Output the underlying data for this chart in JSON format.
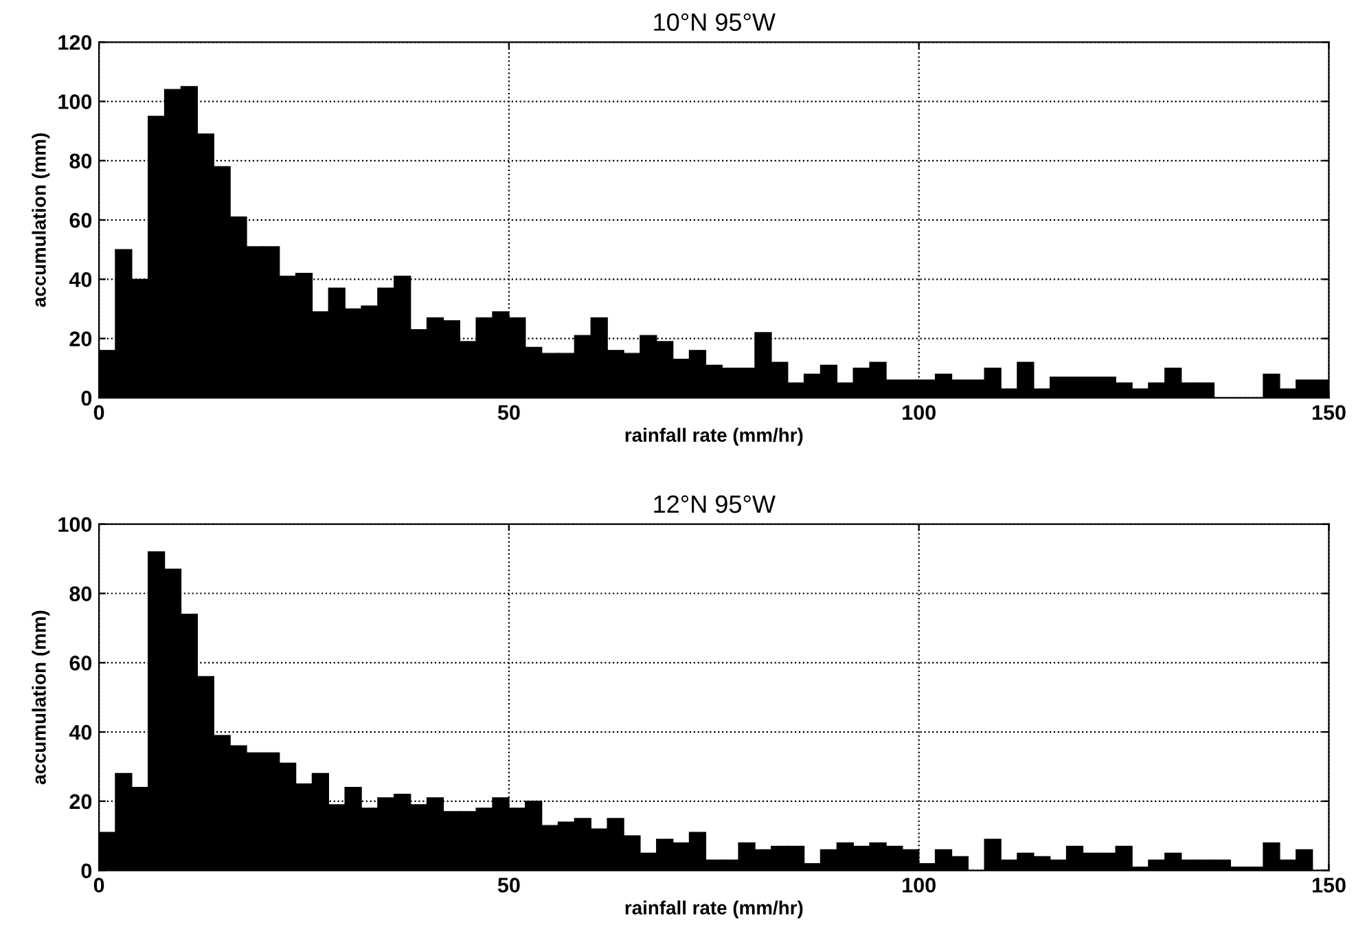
{
  "chart_data": [
    {
      "type": "histogram",
      "title": "10°N 95°W",
      "xlabel": "rainfall rate (mm/hr)",
      "ylabel": "accumulation (mm)",
      "color": "#000000",
      "grid": true,
      "bins": [
        0,
        2,
        4,
        6,
        8,
        10,
        12,
        14,
        16,
        18,
        20,
        22,
        24,
        26,
        28,
        30,
        32,
        34,
        36,
        38,
        40,
        42,
        44,
        46,
        48,
        50,
        52,
        54,
        56,
        58,
        60,
        62,
        64,
        66,
        68,
        70,
        72,
        74,
        76,
        78,
        80,
        82,
        84,
        86,
        88,
        90,
        92,
        94,
        96,
        98,
        100,
        102,
        104,
        106,
        108,
        110,
        112,
        114,
        116,
        118,
        120,
        122,
        124,
        126,
        128,
        130,
        132,
        134,
        136,
        138,
        140,
        142,
        144,
        146,
        148,
        150
      ],
      "values": [
        16,
        50,
        40,
        95,
        104,
        105,
        89,
        78,
        61,
        51,
        51,
        41,
        42,
        29,
        37,
        30,
        31,
        37,
        41,
        23,
        27,
        26,
        19,
        27,
        29,
        27,
        17,
        15,
        15,
        21,
        27,
        16,
        15,
        21,
        19,
        13,
        16,
        11,
        10,
        10,
        22,
        12,
        5,
        8,
        11,
        5,
        10,
        12,
        6,
        6,
        6,
        8,
        6,
        6,
        10,
        3,
        12,
        3,
        7,
        7,
        7,
        7,
        5,
        3,
        5,
        10,
        5,
        5,
        0,
        0,
        0,
        8,
        3,
        6,
        6
      ],
      "xlim": [
        0,
        150
      ],
      "xticks": [
        0,
        50,
        100,
        150
      ],
      "ylim": [
        0,
        120
      ],
      "yticks": [
        0,
        20,
        40,
        60,
        80,
        100,
        120
      ]
    },
    {
      "type": "histogram",
      "title": "12°N 95°W",
      "xlabel": "rainfall rate (mm/hr)",
      "ylabel": "accumulation (mm)",
      "color": "#000000",
      "grid": true,
      "bins": [
        0,
        2,
        4,
        6,
        8,
        10,
        12,
        14,
        16,
        18,
        20,
        22,
        24,
        26,
        28,
        30,
        32,
        34,
        36,
        38,
        40,
        42,
        44,
        46,
        48,
        50,
        52,
        54,
        56,
        58,
        60,
        62,
        64,
        66,
        68,
        70,
        72,
        74,
        76,
        78,
        80,
        82,
        84,
        86,
        88,
        90,
        92,
        94,
        96,
        98,
        100,
        102,
        104,
        106,
        108,
        110,
        112,
        114,
        116,
        118,
        120,
        122,
        124,
        126,
        128,
        130,
        132,
        134,
        136,
        138,
        140,
        142,
        144,
        146,
        148,
        150
      ],
      "values": [
        11,
        28,
        24,
        92,
        87,
        74,
        56,
        39,
        36,
        34,
        34,
        31,
        25,
        28,
        19,
        24,
        18,
        21,
        22,
        19,
        21,
        17,
        17,
        18,
        21,
        18,
        20,
        13,
        14,
        15,
        12,
        15,
        10,
        5,
        9,
        8,
        11,
        3,
        3,
        8,
        6,
        7,
        7,
        2,
        6,
        8,
        7,
        8,
        7,
        6,
        2,
        6,
        4,
        0,
        9,
        3,
        5,
        4,
        3,
        7,
        5,
        5,
        7,
        1,
        3,
        5,
        3,
        3,
        3,
        1,
        1,
        8,
        3,
        6,
        0
      ],
      "xlim": [
        0,
        150
      ],
      "xticks": [
        0,
        50,
        100,
        150
      ],
      "ylim": [
        0,
        100
      ],
      "yticks": [
        0,
        20,
        40,
        60,
        80,
        100
      ]
    }
  ]
}
